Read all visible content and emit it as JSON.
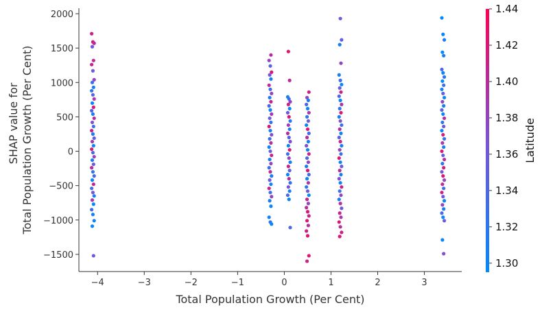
{
  "chart_data": {
    "type": "scatter",
    "xlabel": "Total Population Growth (Per Cent)",
    "ylabel_lines": [
      "SHAP value for",
      "Total Population Growth (Per Cent)"
    ],
    "xlim": [
      -4.4,
      3.8
    ],
    "ylim": [
      -1750,
      2080
    ],
    "x_ticks": [
      -4,
      -3,
      -2,
      -1,
      0,
      1,
      2,
      3
    ],
    "x_tick_labels": [
      "−4",
      "−3",
      "−2",
      "−1",
      "0",
      "1",
      "2",
      "3"
    ],
    "y_ticks": [
      -1500,
      -1000,
      -500,
      0,
      500,
      1000,
      1500,
      2000
    ],
    "y_tick_labels": [
      "−1500",
      "−1000",
      "−500",
      "0",
      "500",
      "1000",
      "1500",
      "2000"
    ],
    "colorbar": {
      "label": "Latitude",
      "range": [
        1.295,
        1.44
      ],
      "ticks": [
        1.3,
        1.32,
        1.34,
        1.36,
        1.38,
        1.4,
        1.42,
        1.44
      ],
      "tick_labels": [
        "1.30",
        "1.32",
        "1.34",
        "1.36",
        "1.38",
        "1.40",
        "1.42",
        "1.44"
      ],
      "color_low": "#008afb",
      "color_mid": "#7c52d6",
      "color_high": "#ff0052"
    },
    "grid": false,
    "legend": "none",
    "groups": [
      {
        "x": -4.1,
        "points": [
          [
            1710,
            1.41
          ],
          [
            1590,
            1.42
          ],
          [
            1570,
            1.4
          ],
          [
            1520,
            1.36
          ],
          [
            1320,
            1.4
          ],
          [
            1260,
            1.41
          ],
          [
            1170,
            1.36
          ],
          [
            1040,
            1.38
          ],
          [
            1000,
            1.33
          ],
          [
            930,
            1.31
          ],
          [
            880,
            1.32
          ],
          [
            820,
            1.35
          ],
          [
            760,
            1.39
          ],
          [
            700,
            1.3
          ],
          [
            640,
            1.42
          ],
          [
            590,
            1.34
          ],
          [
            540,
            1.31
          ],
          [
            480,
            1.4
          ],
          [
            420,
            1.37
          ],
          [
            360,
            1.33
          ],
          [
            300,
            1.41
          ],
          [
            250,
            1.31
          ],
          [
            190,
            1.35
          ],
          [
            140,
            1.39
          ],
          [
            80,
            1.3
          ],
          [
            30,
            1.42
          ],
          [
            -20,
            1.34
          ],
          [
            -80,
            1.38
          ],
          [
            -130,
            1.31
          ],
          [
            -190,
            1.36
          ],
          [
            -240,
            1.4
          ],
          [
            -300,
            1.32
          ],
          [
            -360,
            1.34
          ],
          [
            -420,
            1.3
          ],
          [
            -480,
            1.41
          ],
          [
            -540,
            1.33
          ],
          [
            -600,
            1.37
          ],
          [
            -650,
            1.31
          ],
          [
            -710,
            1.39
          ],
          [
            -770,
            1.3
          ],
          [
            -850,
            1.33
          ],
          [
            -920,
            1.31
          ],
          [
            -1010,
            1.3
          ],
          [
            -1090,
            1.3
          ],
          [
            -1520,
            1.36
          ]
        ]
      },
      {
        "x": -0.3,
        "points": [
          [
            1400,
            1.4
          ],
          [
            1320,
            1.38
          ],
          [
            1240,
            1.35
          ],
          [
            1150,
            1.42
          ],
          [
            1110,
            1.36
          ],
          [
            1050,
            1.31
          ],
          [
            960,
            1.4
          ],
          [
            900,
            1.33
          ],
          [
            840,
            1.38
          ],
          [
            780,
            1.31
          ],
          [
            720,
            1.41
          ],
          [
            660,
            1.34
          ],
          [
            600,
            1.3
          ],
          [
            540,
            1.39
          ],
          [
            480,
            1.36
          ],
          [
            420,
            1.32
          ],
          [
            360,
            1.42
          ],
          [
            300,
            1.31
          ],
          [
            240,
            1.37
          ],
          [
            180,
            1.33
          ],
          [
            120,
            1.4
          ],
          [
            60,
            1.3
          ],
          [
            0,
            1.35
          ],
          [
            -60,
            1.41
          ],
          [
            -120,
            1.31
          ],
          [
            -180,
            1.38
          ],
          [
            -240,
            1.33
          ],
          [
            -300,
            1.4
          ],
          [
            -360,
            1.31
          ],
          [
            -420,
            1.36
          ],
          [
            -480,
            1.3
          ],
          [
            -540,
            1.41
          ],
          [
            -600,
            1.33
          ],
          [
            -660,
            1.38
          ],
          [
            -720,
            1.31
          ],
          [
            -800,
            1.3
          ],
          [
            -960,
            1.31
          ],
          [
            -1030,
            1.32
          ],
          [
            -1060,
            1.3
          ]
        ]
      },
      {
        "x": 0.1,
        "points": [
          [
            1450,
            1.42
          ],
          [
            1030,
            1.4
          ],
          [
            790,
            1.31
          ],
          [
            760,
            1.33
          ],
          [
            720,
            1.38
          ],
          [
            680,
            1.41
          ],
          [
            620,
            1.3
          ],
          [
            560,
            1.36
          ],
          [
            500,
            1.42
          ],
          [
            440,
            1.32
          ],
          [
            380,
            1.39
          ],
          [
            320,
            1.31
          ],
          [
            260,
            1.4
          ],
          [
            200,
            1.34
          ],
          [
            140,
            1.37
          ],
          [
            80,
            1.3
          ],
          [
            20,
            1.42
          ],
          [
            -40,
            1.33
          ],
          [
            -100,
            1.38
          ],
          [
            -160,
            1.31
          ],
          [
            -220,
            1.41
          ],
          [
            -280,
            1.35
          ],
          [
            -340,
            1.3
          ],
          [
            -400,
            1.4
          ],
          [
            -460,
            1.32
          ],
          [
            -520,
            1.37
          ],
          [
            -580,
            1.31
          ],
          [
            -640,
            1.34
          ],
          [
            -700,
            1.3
          ],
          [
            -1110,
            1.34
          ]
        ]
      },
      {
        "x": 0.5,
        "points": [
          [
            860,
            1.41
          ],
          [
            780,
            1.38
          ],
          [
            740,
            1.31
          ],
          [
            680,
            1.34
          ],
          [
            620,
            1.3
          ],
          [
            560,
            1.39
          ],
          [
            500,
            1.32
          ],
          [
            440,
            1.36
          ],
          [
            380,
            1.3
          ],
          [
            320,
            1.42
          ],
          [
            260,
            1.33
          ],
          [
            200,
            1.4
          ],
          [
            140,
            1.31
          ],
          [
            80,
            1.37
          ],
          [
            20,
            1.3
          ],
          [
            -40,
            1.41
          ],
          [
            -100,
            1.34
          ],
          [
            -160,
            1.38
          ],
          [
            -220,
            1.31
          ],
          [
            -280,
            1.42
          ],
          [
            -340,
            1.33
          ],
          [
            -400,
            1.3
          ],
          [
            -460,
            1.39
          ],
          [
            -520,
            1.32
          ],
          [
            -580,
            1.36
          ],
          [
            -640,
            1.3
          ],
          [
            -700,
            1.41
          ],
          [
            -760,
            1.38
          ],
          [
            -820,
            1.4
          ],
          [
            -880,
            1.42
          ],
          [
            -940,
            1.41
          ],
          [
            -1010,
            1.42
          ],
          [
            -1080,
            1.4
          ],
          [
            -1160,
            1.41
          ],
          [
            -1230,
            1.42
          ],
          [
            -1520,
            1.42
          ],
          [
            -1600,
            1.41
          ]
        ]
      },
      {
        "x": 1.2,
        "points": [
          [
            1930,
            1.36
          ],
          [
            1620,
            1.35
          ],
          [
            1550,
            1.31
          ],
          [
            1280,
            1.38
          ],
          [
            1110,
            1.31
          ],
          [
            1030,
            1.33
          ],
          [
            970,
            1.3
          ],
          [
            920,
            1.36
          ],
          [
            860,
            1.41
          ],
          [
            800,
            1.34
          ],
          [
            740,
            1.3
          ],
          [
            680,
            1.39
          ],
          [
            620,
            1.32
          ],
          [
            560,
            1.42
          ],
          [
            500,
            1.31
          ],
          [
            440,
            1.37
          ],
          [
            380,
            1.33
          ],
          [
            320,
            1.4
          ],
          [
            260,
            1.3
          ],
          [
            200,
            1.35
          ],
          [
            140,
            1.41
          ],
          [
            80,
            1.31
          ],
          [
            20,
            1.38
          ],
          [
            -40,
            1.33
          ],
          [
            -100,
            1.42
          ],
          [
            -160,
            1.3
          ],
          [
            -220,
            1.36
          ],
          [
            -280,
            1.4
          ],
          [
            -340,
            1.31
          ],
          [
            -400,
            1.37
          ],
          [
            -460,
            1.3
          ],
          [
            -520,
            1.41
          ],
          [
            -580,
            1.33
          ],
          [
            -640,
            1.38
          ],
          [
            -700,
            1.31
          ],
          [
            -760,
            1.4
          ],
          [
            -830,
            1.36
          ],
          [
            -900,
            1.41
          ],
          [
            -960,
            1.39
          ],
          [
            -1030,
            1.42
          ],
          [
            -1100,
            1.4
          ],
          [
            -1180,
            1.41
          ],
          [
            -1240,
            1.42
          ]
        ]
      },
      {
        "x": 3.4,
        "points": [
          [
            1940,
            1.3
          ],
          [
            1700,
            1.3
          ],
          [
            1620,
            1.31
          ],
          [
            1440,
            1.3
          ],
          [
            1390,
            1.31
          ],
          [
            1190,
            1.34
          ],
          [
            1140,
            1.3
          ],
          [
            1080,
            1.32
          ],
          [
            1020,
            1.3
          ],
          [
            960,
            1.33
          ],
          [
            900,
            1.31
          ],
          [
            840,
            1.35
          ],
          [
            780,
            1.3
          ],
          [
            720,
            1.38
          ],
          [
            660,
            1.31
          ],
          [
            600,
            1.34
          ],
          [
            540,
            1.3
          ],
          [
            480,
            1.4
          ],
          [
            420,
            1.32
          ],
          [
            360,
            1.36
          ],
          [
            300,
            1.3
          ],
          [
            240,
            1.41
          ],
          [
            180,
            1.33
          ],
          [
            120,
            1.39
          ],
          [
            60,
            1.31
          ],
          [
            0,
            1.42
          ],
          [
            -60,
            1.35
          ],
          [
            -120,
            1.4
          ],
          [
            -180,
            1.32
          ],
          [
            -240,
            1.41
          ],
          [
            -300,
            1.36
          ],
          [
            -360,
            1.42
          ],
          [
            -420,
            1.38
          ],
          [
            -480,
            1.4
          ],
          [
            -540,
            1.33
          ],
          [
            -600,
            1.41
          ],
          [
            -660,
            1.36
          ],
          [
            -720,
            1.3
          ],
          [
            -780,
            1.38
          ],
          [
            -840,
            1.31
          ],
          [
            -900,
            1.34
          ],
          [
            -960,
            1.3
          ],
          [
            -1010,
            1.36
          ],
          [
            -1290,
            1.3
          ],
          [
            -1490,
            1.37
          ]
        ]
      }
    ]
  }
}
